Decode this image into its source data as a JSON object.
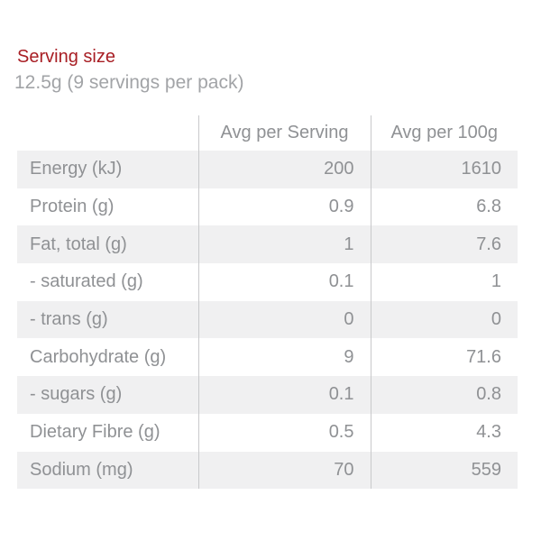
{
  "heading": {
    "title": "Serving size",
    "subtitle": "12.5g (9 servings per pack)"
  },
  "colors": {
    "accent": "#A81E24",
    "subtitle_text": "#A2A4A7",
    "table_text": "#8F9194",
    "row_background": "#F0F0F1",
    "divider": "#C8C9CB"
  },
  "table": {
    "columns": [
      "",
      "Avg per Serving",
      "Avg per 100g"
    ],
    "rows": [
      {
        "label": "Energy (kJ)",
        "per_serving": "200",
        "per_100g": "1610"
      },
      {
        "label": "Protein (g)",
        "per_serving": "0.9",
        "per_100g": "6.8"
      },
      {
        "label": "Fat, total (g)",
        "per_serving": "1",
        "per_100g": "7.6"
      },
      {
        "label": "- saturated (g)",
        "per_serving": "0.1",
        "per_100g": "1"
      },
      {
        "label": "- trans (g)",
        "per_serving": "0",
        "per_100g": "0"
      },
      {
        "label": "Carbohydrate (g)",
        "per_serving": "9",
        "per_100g": "71.6"
      },
      {
        "label": "- sugars (g)",
        "per_serving": "0.1",
        "per_100g": "0.8"
      },
      {
        "label": "Dietary Fibre (g)",
        "per_serving": "0.5",
        "per_100g": "4.3"
      },
      {
        "label": "Sodium (mg)",
        "per_serving": "70",
        "per_100g": "559"
      }
    ]
  }
}
